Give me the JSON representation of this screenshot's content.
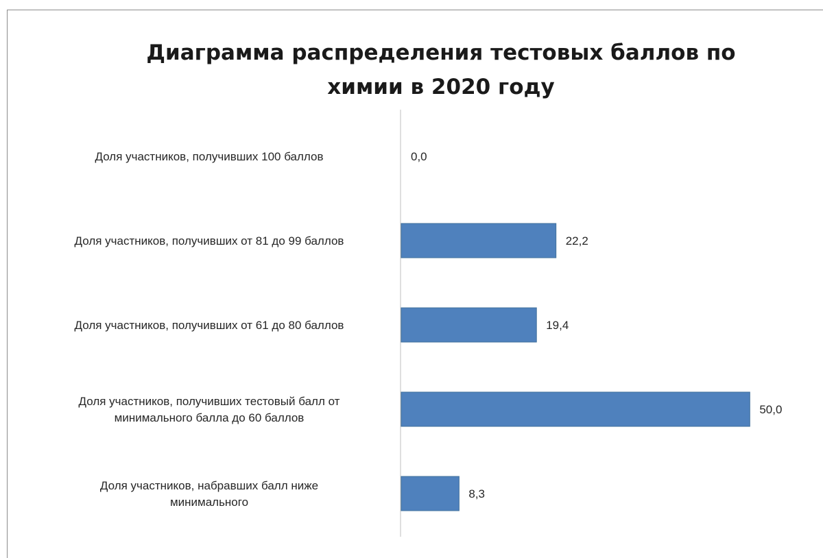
{
  "chart_data": {
    "type": "bar",
    "orientation": "horizontal",
    "title": [
      "Диаграмма распределения тестовых баллов по",
      "химии в 2020 году"
    ],
    "categories": [
      [
        "Доля участников, получивших 100 баллов"
      ],
      [
        "Доля участников, получивших от 81 до 99 баллов"
      ],
      [
        "Доля участников, получивших от 61 до 80 баллов"
      ],
      [
        "Доля участников, получивших тестовый балл от",
        "минимального балла до 60 баллов"
      ],
      [
        "Доля участников, набравших балл ниже",
        "минимального"
      ]
    ],
    "values": [
      0.0,
      22.2,
      19.4,
      50.0,
      8.3
    ],
    "value_labels": [
      "0,0",
      "22,2",
      "19,4",
      "50,0",
      "8,3"
    ],
    "xlim": [
      0,
      60
    ],
    "grid": false,
    "legend": "none",
    "bar_color": "#4f81bd"
  }
}
